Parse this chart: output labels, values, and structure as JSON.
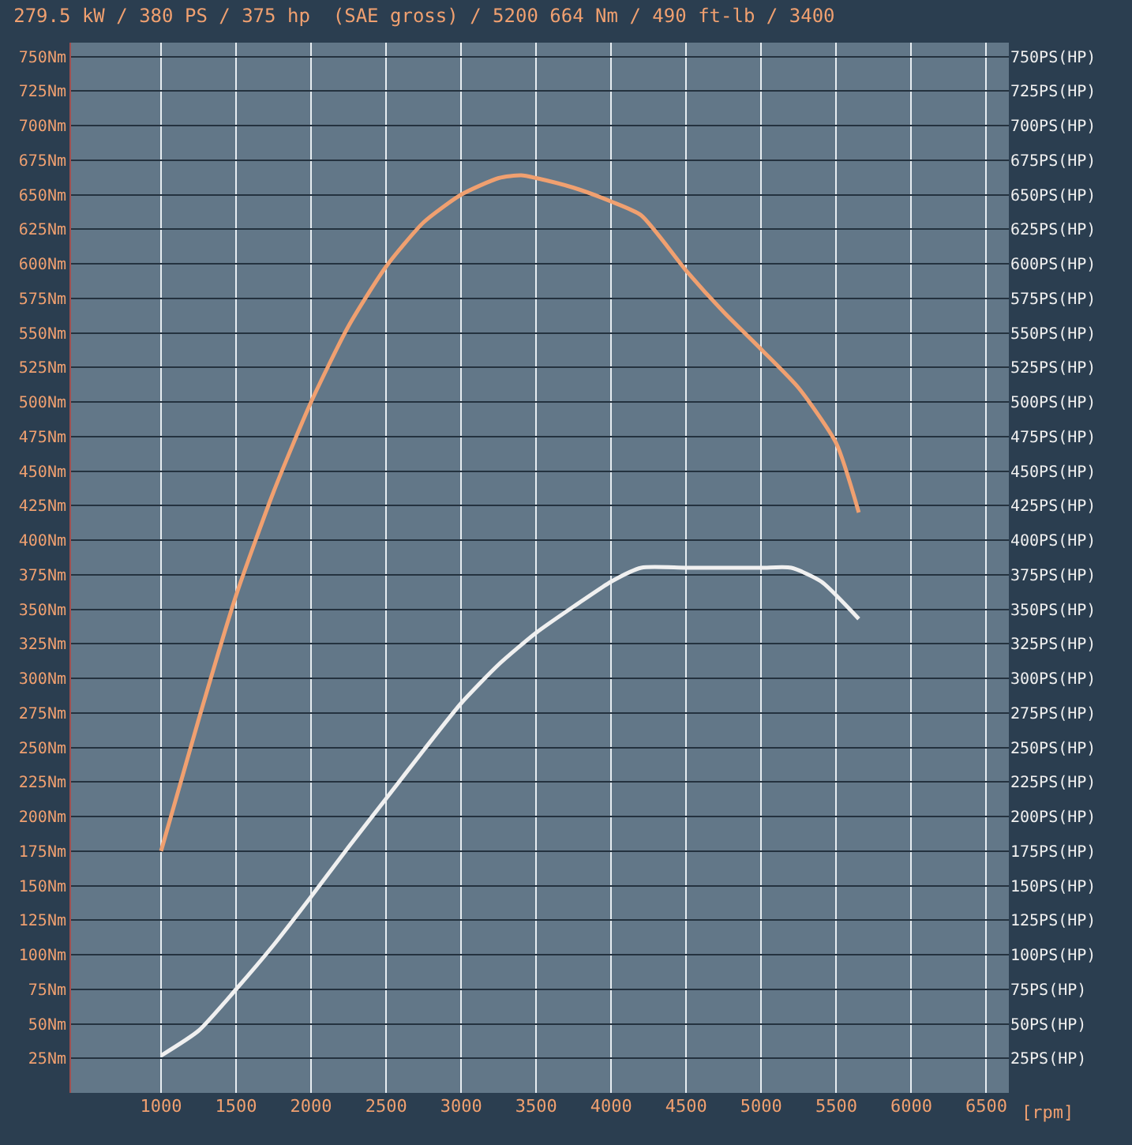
{
  "chart_data": {
    "type": "line",
    "title": "279.5 kW / 380 PS / 375 hp  (SAE gross) / 5200 664 Nm / 490 ft-lb / 3400",
    "xlabel": "[rpm]",
    "xlim": [
      400,
      6650
    ],
    "ylim": [
      0,
      760
    ],
    "y2lim": [
      0,
      760
    ],
    "grid": true,
    "marker": "none",
    "line_style": "solid",
    "xticks": [
      1000,
      1500,
      2000,
      2500,
      3000,
      3500,
      4000,
      4500,
      5000,
      5500,
      6000,
      6500
    ],
    "yticks": [
      {
        "value": 25,
        "label": "25Nm"
      },
      {
        "value": 50,
        "label": "50Nm"
      },
      {
        "value": 75,
        "label": "75Nm"
      },
      {
        "value": 100,
        "label": "100Nm"
      },
      {
        "value": 125,
        "label": "125Nm"
      },
      {
        "value": 150,
        "label": "150Nm"
      },
      {
        "value": 175,
        "label": "175Nm"
      },
      {
        "value": 200,
        "label": "200Nm"
      },
      {
        "value": 225,
        "label": "225Nm"
      },
      {
        "value": 250,
        "label": "250Nm"
      },
      {
        "value": 275,
        "label": "275Nm"
      },
      {
        "value": 300,
        "label": "300Nm"
      },
      {
        "value": 325,
        "label": "325Nm"
      },
      {
        "value": 350,
        "label": "350Nm"
      },
      {
        "value": 375,
        "label": "375Nm"
      },
      {
        "value": 400,
        "label": "400Nm"
      },
      {
        "value": 425,
        "label": "425Nm"
      },
      {
        "value": 450,
        "label": "450Nm"
      },
      {
        "value": 475,
        "label": "475Nm"
      },
      {
        "value": 500,
        "label": "500Nm"
      },
      {
        "value": 525,
        "label": "525Nm"
      },
      {
        "value": 550,
        "label": "550Nm"
      },
      {
        "value": 575,
        "label": "575Nm"
      },
      {
        "value": 600,
        "label": "600Nm"
      },
      {
        "value": 625,
        "label": "625Nm"
      },
      {
        "value": 650,
        "label": "650Nm"
      },
      {
        "value": 675,
        "label": "675Nm"
      },
      {
        "value": 700,
        "label": "700Nm"
      },
      {
        "value": 725,
        "label": "725Nm"
      },
      {
        "value": 750,
        "label": "750Nm"
      }
    ],
    "y2ticks": [
      {
        "value": 25,
        "label": "25PS(HP)"
      },
      {
        "value": 50,
        "label": "50PS(HP)"
      },
      {
        "value": 75,
        "label": "75PS(HP)"
      },
      {
        "value": 100,
        "label": "100PS(HP)"
      },
      {
        "value": 125,
        "label": "125PS(HP)"
      },
      {
        "value": 150,
        "label": "150PS(HP)"
      },
      {
        "value": 175,
        "label": "175PS(HP)"
      },
      {
        "value": 200,
        "label": "200PS(HP)"
      },
      {
        "value": 225,
        "label": "225PS(HP)"
      },
      {
        "value": 250,
        "label": "250PS(HP)"
      },
      {
        "value": 275,
        "label": "275PS(HP)"
      },
      {
        "value": 300,
        "label": "300PS(HP)"
      },
      {
        "value": 325,
        "label": "325PS(HP)"
      },
      {
        "value": 350,
        "label": "350PS(HP)"
      },
      {
        "value": 375,
        "label": "375PS(HP)"
      },
      {
        "value": 400,
        "label": "400PS(HP)"
      },
      {
        "value": 425,
        "label": "425PS(HP)"
      },
      {
        "value": 450,
        "label": "450PS(HP)"
      },
      {
        "value": 475,
        "label": "475PS(HP)"
      },
      {
        "value": 500,
        "label": "500PS(HP)"
      },
      {
        "value": 525,
        "label": "525PS(HP)"
      },
      {
        "value": 550,
        "label": "550PS(HP)"
      },
      {
        "value": 575,
        "label": "575PS(HP)"
      },
      {
        "value": 600,
        "label": "600PS(HP)"
      },
      {
        "value": 625,
        "label": "625PS(HP)"
      },
      {
        "value": 650,
        "label": "650PS(HP)"
      },
      {
        "value": 675,
        "label": "675PS(HP)"
      },
      {
        "value": 700,
        "label": "700PS(HP)"
      },
      {
        "value": 725,
        "label": "725PS(HP)"
      },
      {
        "value": 750,
        "label": "750PS(HP)"
      }
    ],
    "series": [
      {
        "color": "#f0a070",
        "x": [
          1000,
          1250,
          1500,
          1750,
          2000,
          2250,
          2500,
          2750,
          3000,
          3250,
          3400,
          3500,
          3750,
          4000,
          4200,
          4500,
          4750,
          5000,
          5250,
          5500,
          5650
        ],
        "values": [
          175,
          270,
          360,
          435,
          500,
          555,
          598,
          630,
          650,
          662,
          664,
          662,
          655,
          645,
          635,
          595,
          565,
          538,
          510,
          470,
          420
        ]
      },
      {
        "color": "#f0f0f0",
        "axis": "y2",
        "x": [
          1000,
          1250,
          1500,
          1750,
          2000,
          2250,
          2500,
          2750,
          3000,
          3250,
          3500,
          3750,
          4000,
          4200,
          4500,
          5000,
          5200,
          5400,
          5650
        ],
        "values": [
          27,
          45,
          75,
          107,
          142,
          178,
          213,
          248,
          282,
          310,
          333,
          352,
          370,
          380,
          380,
          380,
          380,
          370,
          343
        ]
      }
    ]
  }
}
